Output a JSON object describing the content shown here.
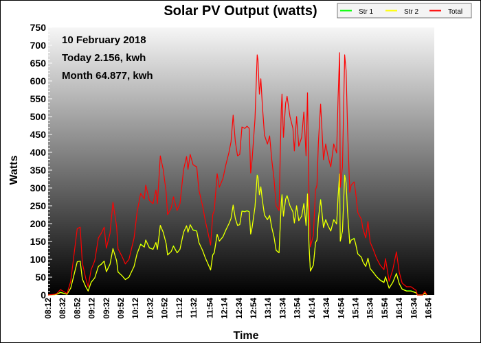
{
  "chart_data": {
    "type": "line",
    "title": "Solar PV Output (watts)",
    "xlabel": "Time",
    "ylabel": "Watts",
    "ylim": [
      0,
      750
    ],
    "yticks": [
      0,
      50,
      100,
      150,
      200,
      250,
      300,
      350,
      400,
      450,
      500,
      550,
      600,
      650,
      700,
      750
    ],
    "xticks": [
      "08:12",
      "08:32",
      "08:52",
      "09:12",
      "09:32",
      "09:52",
      "10:12",
      "10:32",
      "10:52",
      "11:12",
      "11:32",
      "11:54",
      "12:14",
      "12:34",
      "12:54",
      "13:14",
      "13:34",
      "13:54",
      "14:14",
      "14:34",
      "14:54",
      "15:14",
      "15:34",
      "15:54",
      "16:14",
      "16:34",
      "16:54"
    ],
    "xlim": [
      "08:12",
      "17:02"
    ],
    "grid": false,
    "legend_position": "top-right",
    "annotations": [
      "10 February 2018",
      "Today 2.156, kwh",
      "Month 64.877, kwh"
    ],
    "x": [
      "08:12",
      "08:21",
      "08:24",
      "08:29",
      "08:38",
      "08:43",
      "08:48",
      "08:52",
      "08:56",
      "08:59",
      "09:04",
      "09:07",
      "09:11",
      "09:16",
      "09:21",
      "09:25",
      "09:29",
      "09:32",
      "09:37",
      "09:41",
      "09:46",
      "09:48",
      "09:53",
      "09:58",
      "10:03",
      "10:10",
      "10:14",
      "10:19",
      "10:24",
      "10:26",
      "10:31",
      "10:36",
      "10:40",
      "10:42",
      "10:46",
      "10:50",
      "10:54",
      "10:56",
      "11:01",
      "11:04",
      "11:09",
      "11:13",
      "11:18",
      "11:22",
      "11:24",
      "11:27",
      "11:31",
      "11:36",
      "11:39",
      "11:44",
      "11:48",
      "11:51",
      "11:55",
      "11:58",
      "12:00",
      "12:04",
      "12:07",
      "12:12",
      "12:16",
      "12:20",
      "12:23",
      "12:26",
      "12:29",
      "12:32",
      "12:35",
      "12:38",
      "12:42",
      "12:45",
      "12:48",
      "12:50",
      "12:52",
      "12:56",
      "12:59",
      "13:00",
      "13:02",
      "13:04",
      "13:06",
      "13:09",
      "13:13",
      "13:16",
      "13:19",
      "13:22",
      "13:25",
      "13:29",
      "13:32",
      "13:33",
      "13:35",
      "13:38",
      "13:40",
      "13:44",
      "13:48",
      "13:50",
      "13:53",
      "13:56",
      "14:00",
      "14:03",
      "14:06",
      "14:08",
      "14:10",
      "14:12",
      "14:16",
      "14:19",
      "14:21",
      "14:23",
      "14:26",
      "14:30",
      "14:33",
      "14:36",
      "14:40",
      "14:44",
      "14:48",
      "14:50",
      "14:52",
      "14:53",
      "14:56",
      "14:59",
      "15:01",
      "15:03",
      "15:06",
      "15:08",
      "15:12",
      "15:14",
      "15:17",
      "15:22",
      "15:24",
      "15:28",
      "15:31",
      "15:34",
      "15:38",
      "15:43",
      "15:48",
      "15:53",
      "15:55",
      "16:00",
      "16:05",
      "16:10",
      "16:14",
      "16:18",
      "16:24",
      "16:30",
      "16:37",
      "16:39",
      "16:46",
      "16:49",
      "16:52"
    ],
    "series": [
      {
        "name": "Str 1",
        "color": "#00ff00",
        "values": [
          0,
          1,
          2,
          8,
          2,
          19,
          61,
          93,
          95,
          45,
          22,
          12,
          36,
          48,
          80,
          87,
          95,
          66,
          87,
          130,
          96,
          65,
          55,
          44,
          50,
          80,
          116,
          143,
          135,
          154,
          133,
          128,
          147,
          128,
          195,
          176,
          144,
          113,
          122,
          138,
          119,
          128,
          176,
          194,
          176,
          197,
          183,
          180,
          147,
          125,
          103,
          90,
          70,
          113,
          119,
          170,
          151,
          164,
          183,
          199,
          215,
          252,
          215,
          195,
          197,
          236,
          234,
          237,
          234,
          171,
          190,
          247,
          337,
          330,
          282,
          303,
          266,
          224,
          212,
          223,
          190,
          164,
          125,
          119,
          260,
          282,
          221,
          269,
          279,
          250,
          234,
          202,
          250,
          209,
          221,
          257,
          195,
          284,
          144,
          68,
          84,
          147,
          154,
          215,
          268,
          190,
          212,
          195,
          180,
          212,
          199,
          276,
          340,
          151,
          180,
          337,
          315,
          234,
          144,
          154,
          159,
          144,
          116,
          106,
          93,
          80,
          103,
          74,
          65,
          51,
          42,
          36,
          51,
          19,
          36,
          61,
          32,
          17,
          12,
          12,
          7,
          0,
          0,
          5,
          0
        ]
      },
      {
        "name": "Str 2",
        "color": "#ffff00",
        "values": [
          0,
          1,
          2,
          7,
          2,
          19,
          60,
          93,
          95,
          45,
          22,
          11,
          35,
          48,
          80,
          86,
          95,
          65,
          86,
          130,
          96,
          64,
          55,
          43,
          50,
          80,
          115,
          142,
          134,
          154,
          132,
          128,
          147,
          128,
          195,
          176,
          144,
          112,
          122,
          137,
          118,
          128,
          176,
          194,
          176,
          197,
          182,
          179,
          147,
          125,
          103,
          89,
          70,
          112,
          118,
          170,
          151,
          163,
          182,
          199,
          214,
          252,
          214,
          195,
          197,
          235,
          233,
          236,
          233,
          171,
          189,
          247,
          336,
          330,
          281,
          303,
          266,
          224,
          211,
          223,
          189,
          163,
          125,
          118,
          259,
          281,
          221,
          269,
          278,
          250,
          233,
          202,
          250,
          208,
          221,
          256,
          195,
          283,
          144,
          67,
          83,
          147,
          154,
          214,
          267,
          189,
          211,
          195,
          179,
          211,
          199,
          276,
          339,
          151,
          179,
          336,
          314,
          233,
          144,
          154,
          158,
          144,
          115,
          106,
          93,
          80,
          103,
          74,
          64,
          51,
          41,
          35,
          51,
          19,
          35,
          60,
          31,
          16,
          11,
          11,
          6,
          0,
          0,
          5,
          0
        ]
      },
      {
        "name": "Total",
        "color": "#ff0000",
        "values": [
          0,
          2,
          4,
          15,
          4,
          38,
          121,
          186,
          190,
          90,
          44,
          23,
          71,
          96,
          160,
          173,
          190,
          131,
          173,
          260,
          192,
          129,
          110,
          87,
          100,
          160,
          231,
          285,
          269,
          308,
          265,
          256,
          294,
          256,
          390,
          352,
          288,
          225,
          244,
          275,
          237,
          256,
          352,
          388,
          352,
          394,
          365,
          359,
          294,
          250,
          206,
          179,
          140,
          225,
          237,
          340,
          302,
          327,
          365,
          398,
          429,
          504,
          429,
          390,
          394,
          471,
          467,
          473,
          467,
          342,
          379,
          494,
          673,
          660,
          563,
          606,
          532,
          448,
          423,
          446,
          379,
          327,
          250,
          237,
          519,
          563,
          442,
          538,
          557,
          500,
          467,
          404,
          500,
          417,
          442,
          513,
          390,
          567,
          288,
          135,
          167,
          294,
          308,
          429,
          535,
          379,
          423,
          390,
          359,
          423,
          398,
          552,
          679,
          302,
          359,
          673,
          629,
          467,
          288,
          308,
          317,
          288,
          231,
          212,
          186,
          160,
          206,
          148,
          129,
          102,
          83,
          71,
          102,
          38,
          71,
          121,
          63,
          33,
          23,
          23,
          13,
          0,
          0,
          10,
          0
        ]
      }
    ]
  }
}
